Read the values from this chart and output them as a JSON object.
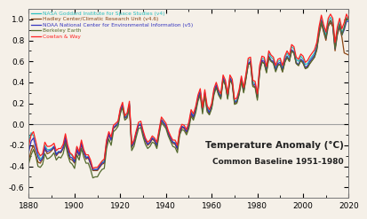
{
  "title": "Temperature Anomaly (°C)",
  "subtitle": "Common Baseline 1951-1980",
  "xlim": [
    1880,
    2020
  ],
  "ylim": [
    -0.7,
    1.1
  ],
  "yticks": [
    -0.6,
    -0.4,
    -0.2,
    0.0,
    0.2,
    0.4,
    0.6,
    0.8,
    1.0
  ],
  "xticks": [
    1880,
    1900,
    1920,
    1940,
    1960,
    1980,
    2000,
    2020
  ],
  "series_colors": [
    "#2ABFBF",
    "#8B4513",
    "#3535C0",
    "#556B2F",
    "#FF2020"
  ],
  "series_labels": [
    "NASA Goddard Institute for Space Studies (v4)",
    "Hadley Center/Climatic Research Unit (v4.6)",
    "NOAA National Center for Environmental Information (v5)",
    "Berkeley Earth",
    "Cowtan & Way"
  ],
  "bg_color": "#F5F0E8",
  "linewidth": 0.9,
  "zero_line_color": "#A0A0A0"
}
